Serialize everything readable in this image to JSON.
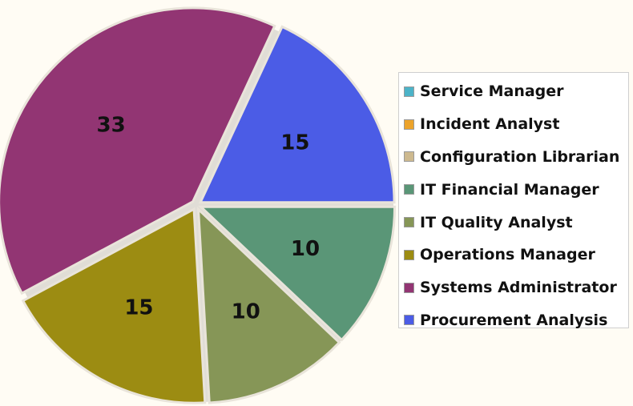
{
  "chart_data": {
    "type": "pie",
    "title": "",
    "legend_position": "right",
    "slices": [
      {
        "label": "Service Manager",
        "value": 0,
        "color": "#4cb3c8"
      },
      {
        "label": "Incident Analyst",
        "value": 0,
        "color": "#eca32b"
      },
      {
        "label": "Configuration Librarian",
        "value": 0,
        "color": "#cdb98f"
      },
      {
        "label": "IT Financial Manager",
        "value": 10,
        "color": "#5a9677"
      },
      {
        "label": "IT Quality Analyst",
        "value": 10,
        "color": "#869657"
      },
      {
        "label": "Operations Manager",
        "value": 15,
        "color": "#9c8c12"
      },
      {
        "label": "Systems Administrator",
        "value": 33,
        "color": "#923573"
      },
      {
        "label": "Procurement Analysis",
        "value": 15,
        "color": "#4b5ce6"
      }
    ]
  }
}
